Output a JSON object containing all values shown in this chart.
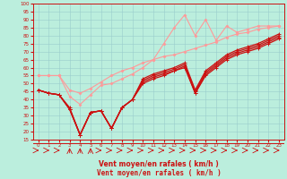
{
  "xlabel": "Vent moyen/en rafales ( km/h )",
  "bg_color": "#bbeedd",
  "grid_color": "#99cccc",
  "x_values": [
    0,
    1,
    2,
    3,
    4,
    5,
    6,
    7,
    8,
    9,
    10,
    11,
    12,
    13,
    14,
    15,
    16,
    17,
    18,
    19,
    20,
    21,
    22,
    23
  ],
  "ylim": [
    15,
    100
  ],
  "xlim": [
    -0.5,
    23.5
  ],
  "yticks": [
    15,
    20,
    25,
    30,
    35,
    40,
    45,
    50,
    55,
    60,
    65,
    70,
    75,
    80,
    85,
    90,
    95,
    100
  ],
  "xticks": [
    0,
    1,
    2,
    3,
    4,
    5,
    6,
    7,
    8,
    9,
    10,
    11,
    12,
    13,
    14,
    15,
    16,
    17,
    18,
    19,
    20,
    21,
    22,
    23
  ],
  "series_light1": [
    55,
    55,
    55,
    46,
    44,
    47,
    51,
    55,
    58,
    60,
    63,
    65,
    67,
    68,
    70,
    72,
    74,
    76,
    79,
    81,
    82,
    84,
    85,
    86
  ],
  "series_light2": [
    55,
    55,
    55,
    42,
    37,
    43,
    49,
    50,
    53,
    56,
    60,
    65,
    75,
    85,
    93,
    80,
    90,
    77,
    86,
    82,
    84,
    86,
    86,
    86
  ],
  "series_dark1": [
    46,
    44,
    43,
    35,
    18,
    32,
    33,
    22,
    35,
    40,
    50,
    53,
    55,
    58,
    60,
    44,
    55,
    60,
    65,
    68,
    70,
    72,
    75,
    78
  ],
  "series_dark2": [
    46,
    44,
    43,
    34,
    18,
    32,
    33,
    22,
    35,
    40,
    51,
    54,
    56,
    58,
    61,
    44,
    56,
    61,
    66,
    69,
    71,
    73,
    76,
    79
  ],
  "series_dark3": [
    46,
    44,
    43,
    34,
    18,
    32,
    33,
    22,
    35,
    40,
    52,
    55,
    57,
    59,
    62,
    45,
    57,
    62,
    67,
    70,
    72,
    74,
    77,
    80
  ],
  "series_dark4": [
    46,
    44,
    43,
    34,
    18,
    32,
    33,
    22,
    35,
    40,
    53,
    56,
    58,
    60,
    63,
    46,
    58,
    63,
    68,
    71,
    73,
    75,
    78,
    81
  ],
  "color_light": "#ff9999",
  "color_dark": "#cc1111",
  "arrow_types": [
    "r",
    "r",
    "r",
    "u",
    "u",
    "u",
    "r",
    "r",
    "r",
    "r",
    "r",
    "r",
    "r",
    "r",
    "r",
    "r",
    "r",
    "r",
    "r",
    "r",
    "r",
    "r",
    "r",
    "r"
  ]
}
